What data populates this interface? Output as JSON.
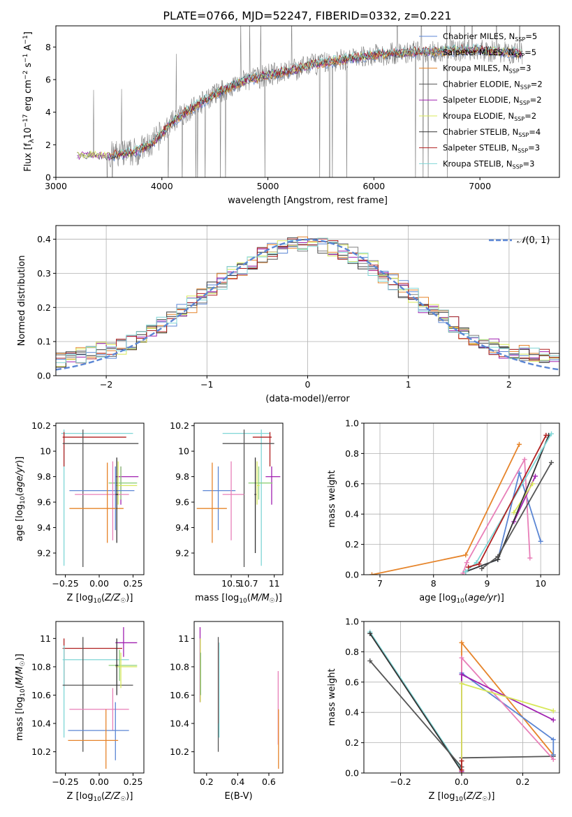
{
  "title": "PLATE=0766, MJD=52247, FIBERID=0332, z=0.221",
  "colors": {
    "grid": "#b0b0b0",
    "obs": "#808080",
    "palette": [
      "#5b86d4",
      "#808080",
      "#e6842a",
      "#555555",
      "#a020b0",
      "#d8e85a",
      "#333333",
      "#b02020",
      "#7fd6d6",
      "#e87fb8",
      "#8fd07a"
    ]
  },
  "chart_data": [
    {
      "id": "spectrum",
      "type": "line",
      "xlabel": "wavelength [Angstrom, rest frame]",
      "ylabel": "Flux [f_λ 10^-17 erg cm^-2 s^-1 A^-1]",
      "xlim": [
        3000,
        7750
      ],
      "ylim": [
        0,
        9.3
      ],
      "xticks": [
        3000,
        4000,
        5000,
        6000,
        7000
      ],
      "yticks": [
        0,
        2,
        4,
        6,
        8
      ],
      "grid": false,
      "legend_position": "right",
      "legend": [
        {
          "label": "Chabrier MILES, N_SSP=5",
          "color": "#5b86d4"
        },
        {
          "label": "Salpeter MILES, N_SSP=5",
          "color": "#808080"
        },
        {
          "label": "Kroupa MILES, N_SSP=3",
          "color": "#e6842a"
        },
        {
          "label": "Chabrier ELODIE, N_SSP=2",
          "color": "#555555"
        },
        {
          "label": "Salpeter ELODIE, N_SSP=2",
          "color": "#a020b0"
        },
        {
          "label": "Kroupa ELODIE, N_SSP=2",
          "color": "#d8e85a"
        },
        {
          "label": "Chabrier STELIB, N_SSP=4",
          "color": "#333333"
        },
        {
          "label": "Salpeter STELIB, N_SSP=3",
          "color": "#b02020"
        },
        {
          "label": "Kroupa STELIB, N_SSP=3",
          "color": "#7fd6d6"
        }
      ],
      "continuum": {
        "x": [
          3200,
          3300,
          3400,
          3500,
          3600,
          3700,
          3800,
          3900,
          4000,
          4100,
          4200,
          4300,
          4400,
          4500,
          4600,
          4700,
          4800,
          4900,
          5000,
          5200,
          5400,
          5600,
          5800,
          6000,
          6200,
          6400,
          6600,
          6800,
          7000,
          7200,
          7400
        ],
        "y": [
          1.3,
          1.4,
          1.35,
          1.3,
          1.4,
          1.5,
          1.7,
          2.0,
          2.7,
          3.4,
          3.9,
          4.3,
          4.7,
          5.1,
          5.4,
          5.7,
          6.0,
          6.1,
          6.3,
          6.5,
          6.9,
          7.1,
          7.3,
          7.5,
          7.6,
          7.7,
          7.7,
          7.8,
          7.8,
          7.7,
          7.6
        ]
      }
    },
    {
      "id": "residuals",
      "type": "line",
      "xlabel": "(data-model)/error",
      "ylabel": "Normed distribution",
      "xlim": [
        -2.5,
        2.5
      ],
      "ylim": [
        0,
        0.44
      ],
      "xticks": [
        -2,
        -1,
        0,
        1,
        2
      ],
      "yticks": [
        0.0,
        0.1,
        0.2,
        0.3,
        0.4
      ],
      "grid": true,
      "legend_position": "top-right",
      "legend": [
        {
          "label": "N(0,1)",
          "color": "#5b86d4"
        }
      ]
    },
    {
      "id": "age_vs_Z",
      "type": "scatter",
      "xlabel": "Z [log10(Z/Z☉)]",
      "ylabel": "age [log10(age/yr)]",
      "xlim": [
        -0.32,
        0.33
      ],
      "ylim": [
        9.03,
        10.22
      ],
      "xticks": [
        -0.25,
        0.0,
        0.25
      ],
      "xticklabels": [
        "−0.25",
        "0.00",
        "0.25"
      ],
      "yticks": [
        9.2,
        9.4,
        9.6,
        9.8,
        10.0,
        10.2
      ],
      "grid": false,
      "points": [
        {
          "x": -0.26,
          "y": 10.14,
          "xlo": -0.28,
          "xhi": 0.25,
          "ylo": 9.1,
          "yhi": 10.17,
          "color": "#7fd6d6"
        },
        {
          "x": -0.26,
          "y": 10.11,
          "xlo": -0.27,
          "xhi": 0.2,
          "ylo": 9.88,
          "yhi": 10.15,
          "color": "#b02020"
        },
        {
          "x": -0.12,
          "y": 10.06,
          "xlo": -0.27,
          "xhi": 0.29,
          "ylo": 9.09,
          "yhi": 10.17,
          "color": "#555555"
        },
        {
          "x": 0.16,
          "y": 9.8,
          "xlo": 0.12,
          "xhi": 0.29,
          "ylo": 9.58,
          "yhi": 9.88,
          "color": "#a020b0"
        },
        {
          "x": 0.16,
          "y": 9.75,
          "xlo": 0.07,
          "xhi": 0.28,
          "ylo": 9.62,
          "yhi": 9.88,
          "color": "#8fd07a"
        },
        {
          "x": 0.14,
          "y": 9.73,
          "xlo": 0.12,
          "xhi": 0.28,
          "ylo": 9.58,
          "yhi": 9.92,
          "color": "#d8e85a"
        },
        {
          "x": 0.12,
          "y": 9.69,
          "xlo": -0.22,
          "xhi": 0.26,
          "ylo": 9.38,
          "yhi": 9.88,
          "color": "#5b86d4"
        },
        {
          "x": 0.1,
          "y": 9.66,
          "xlo": -0.18,
          "xhi": 0.22,
          "ylo": 9.3,
          "yhi": 9.92,
          "color": "#e87fb8"
        },
        {
          "x": 0.06,
          "y": 9.55,
          "xlo": -0.22,
          "xhi": 0.18,
          "ylo": 9.28,
          "yhi": 9.91,
          "color": "#e6842a"
        },
        {
          "x": 0.13,
          "y": 9.66,
          "xlo": 0.12,
          "xhi": 0.14,
          "ylo": 9.28,
          "yhi": 9.95,
          "color": "#333333"
        }
      ]
    },
    {
      "id": "age_vs_mass",
      "type": "scatter",
      "xlabel": "mass [log10(M/M☉)]",
      "ylabel": "",
      "xlim": [
        10.07,
        11.1
      ],
      "ylim": [
        9.03,
        10.22
      ],
      "xticks": [
        10.5,
        10.7,
        11.0
      ],
      "yticks": [
        9.2,
        9.4,
        9.6,
        9.8,
        10.0,
        10.2
      ],
      "grid": false,
      "points": [
        {
          "x": 10.85,
          "y": 10.14,
          "xlo": 10.4,
          "xhi": 10.95,
          "ylo": 9.1,
          "yhi": 10.17,
          "color": "#7fd6d6"
        },
        {
          "x": 10.95,
          "y": 10.11,
          "xlo": 10.75,
          "xhi": 10.97,
          "ylo": 9.88,
          "yhi": 10.15,
          "color": "#b02020"
        },
        {
          "x": 10.65,
          "y": 10.06,
          "xlo": 10.4,
          "xhi": 11.0,
          "ylo": 9.09,
          "yhi": 10.17,
          "color": "#555555"
        },
        {
          "x": 10.97,
          "y": 9.8,
          "xlo": 10.9,
          "xhi": 11.07,
          "ylo": 9.58,
          "yhi": 9.88,
          "color": "#a020b0"
        },
        {
          "x": 10.82,
          "y": 9.75,
          "xlo": 10.7,
          "xhi": 10.98,
          "ylo": 9.62,
          "yhi": 9.88,
          "color": "#8fd07a"
        },
        {
          "x": 10.8,
          "y": 9.73,
          "xlo": 10.8,
          "xhi": 10.83,
          "ylo": 9.58,
          "yhi": 9.92,
          "color": "#d8e85a"
        },
        {
          "x": 10.35,
          "y": 9.69,
          "xlo": 10.17,
          "xhi": 10.55,
          "ylo": 9.38,
          "yhi": 9.88,
          "color": "#5b86d4"
        },
        {
          "x": 10.5,
          "y": 9.66,
          "xlo": 10.4,
          "xhi": 10.65,
          "ylo": 9.3,
          "yhi": 9.92,
          "color": "#e87fb8"
        },
        {
          "x": 10.28,
          "y": 9.55,
          "xlo": 10.1,
          "xhi": 10.45,
          "ylo": 9.28,
          "yhi": 9.91,
          "color": "#e6842a"
        },
        {
          "x": 10.78,
          "y": 9.66,
          "xlo": 10.77,
          "xhi": 10.79,
          "ylo": 9.2,
          "yhi": 9.95,
          "color": "#333333"
        }
      ]
    },
    {
      "id": "weight_vs_age",
      "type": "line",
      "xlabel": "age [log10(age/yr)]",
      "ylabel": "mass weight",
      "xlim": [
        6.7,
        10.35
      ],
      "ylim": [
        0,
        1.0
      ],
      "xticks": [
        7,
        8,
        9,
        10
      ],
      "yticks": [
        0.0,
        0.2,
        0.4,
        0.6,
        0.8,
        1.0
      ],
      "grid": true,
      "series": [
        {
          "color": "#e6842a",
          "x": [
            6.85,
            8.6,
            9.6
          ],
          "y": [
            0.0,
            0.13,
            0.86
          ]
        },
        {
          "color": "#5b86d4",
          "x": [
            8.6,
            9.2,
            9.6,
            10.0
          ],
          "y": [
            0.02,
            0.1,
            0.67,
            0.22
          ]
        },
        {
          "color": "#e87fb8",
          "x": [
            8.55,
            8.62,
            9.7,
            9.8
          ],
          "y": [
            0.01,
            0.08,
            0.76,
            0.11
          ]
        },
        {
          "color": "#a020b0",
          "x": [
            9.5,
            9.9
          ],
          "y": [
            0.35,
            0.65
          ]
        },
        {
          "color": "#d8e85a",
          "x": [
            9.5,
            9.85
          ],
          "y": [
            0.41,
            0.6
          ]
        },
        {
          "color": "#333333",
          "x": [
            8.6,
            9.2,
            10.15
          ],
          "y": [
            0.02,
            0.1,
            0.92
          ]
        },
        {
          "color": "#555555",
          "x": [
            8.9,
            9.2,
            10.2
          ],
          "y": [
            0.04,
            0.12,
            0.74
          ]
        },
        {
          "color": "#7fd6d6",
          "x": [
            8.6,
            8.8,
            10.2
          ],
          "y": [
            0.02,
            0.08,
            0.93
          ]
        },
        {
          "color": "#b02020",
          "x": [
            8.65,
            8.85,
            10.1
          ],
          "y": [
            0.05,
            0.07,
            0.92
          ]
        }
      ]
    },
    {
      "id": "mass_vs_Z",
      "type": "scatter",
      "xlabel": "Z [log10(Z/Z☉)]",
      "ylabel": "mass [log10(M/M☉)]",
      "xlim": [
        -0.32,
        0.33
      ],
      "ylim": [
        10.05,
        11.12
      ],
      "xticks": [
        -0.25,
        0.0,
        0.25
      ],
      "xticklabels": [
        "−0.25",
        "0.00",
        "0.25"
      ],
      "yticks": [
        10.2,
        10.4,
        10.6,
        10.8,
        11.0
      ],
      "grid": false,
      "points": [
        {
          "x": -0.26,
          "y": 10.93,
          "xlo": -0.27,
          "xhi": 0.17,
          "ylo": 10.66,
          "yhi": 11.0,
          "color": "#b02020"
        },
        {
          "x": -0.26,
          "y": 10.85,
          "xlo": -0.27,
          "xhi": 0.22,
          "ylo": 10.3,
          "yhi": 10.95,
          "color": "#7fd6d6"
        },
        {
          "x": -0.12,
          "y": 10.67,
          "xlo": -0.27,
          "xhi": 0.25,
          "ylo": 10.2,
          "yhi": 11.01,
          "color": "#555555"
        },
        {
          "x": 0.18,
          "y": 10.97,
          "xlo": 0.12,
          "xhi": 0.28,
          "ylo": 10.87,
          "yhi": 11.08,
          "color": "#a020b0"
        },
        {
          "x": 0.15,
          "y": 10.81,
          "xlo": 0.07,
          "xhi": 0.28,
          "ylo": 10.7,
          "yhi": 10.92,
          "color": "#8fd07a"
        },
        {
          "x": 0.16,
          "y": 10.8,
          "xlo": 0.12,
          "xhi": 0.28,
          "ylo": 10.65,
          "yhi": 10.9,
          "color": "#d8e85a"
        },
        {
          "x": 0.1,
          "y": 10.5,
          "xlo": -0.22,
          "xhi": 0.22,
          "ylo": 10.35,
          "yhi": 10.65,
          "color": "#e87fb8"
        },
        {
          "x": 0.12,
          "y": 10.35,
          "xlo": -0.23,
          "xhi": 0.22,
          "ylo": 10.14,
          "yhi": 10.55,
          "color": "#5b86d4"
        },
        {
          "x": 0.05,
          "y": 10.28,
          "xlo": -0.23,
          "xhi": 0.14,
          "ylo": 10.08,
          "yhi": 10.5,
          "color": "#e6842a"
        },
        {
          "x": 0.13,
          "y": 10.81,
          "xlo": 0.12,
          "xhi": 0.14,
          "ylo": 10.6,
          "yhi": 11.0,
          "color": "#333333"
        }
      ]
    },
    {
      "id": "mass_vs_ebv",
      "type": "scatter",
      "xlabel": "E(B-V)",
      "ylabel": "",
      "xlim": [
        0.12,
        0.69
      ],
      "ylim": [
        10.05,
        11.12
      ],
      "xticks": [
        0.2,
        0.4,
        0.6
      ],
      "yticks": [
        10.2,
        10.4,
        10.6,
        10.8,
        11.0
      ],
      "grid": false,
      "points": [
        {
          "x": 0.158,
          "y": 10.9,
          "ylo": 10.55,
          "yhi": 11.08,
          "color": "#a020b0"
        },
        {
          "x": 0.16,
          "y": 10.8,
          "ylo": 10.55,
          "yhi": 11.0,
          "color": "#d8e85a"
        },
        {
          "x": 0.162,
          "y": 10.75,
          "ylo": 10.6,
          "yhi": 10.9,
          "color": "#8fd07a"
        },
        {
          "x": 0.275,
          "y": 10.95,
          "ylo": 10.2,
          "yhi": 11.01,
          "color": "#555555"
        },
        {
          "x": 0.278,
          "y": 10.9,
          "ylo": 10.4,
          "yhi": 10.97,
          "color": "#b02020"
        },
        {
          "x": 0.28,
          "y": 10.6,
          "ylo": 10.3,
          "yhi": 10.97,
          "color": "#7fd6d6"
        },
        {
          "x": 0.66,
          "y": 10.5,
          "ylo": 10.25,
          "yhi": 10.77,
          "color": "#e87fb8"
        },
        {
          "x": 0.662,
          "y": 10.3,
          "ylo": 10.08,
          "yhi": 10.5,
          "color": "#e6842a"
        }
      ]
    },
    {
      "id": "weight_vs_Z",
      "type": "line",
      "xlabel": "Z [log10(Z/Z☉)]",
      "ylabel": "mass weight",
      "xlim": [
        -0.32,
        0.32
      ],
      "ylim": [
        0,
        1.0
      ],
      "xticks": [
        -0.2,
        0.0,
        0.2
      ],
      "xticklabels": [
        "−0.2",
        "0.0",
        "0.2"
      ],
      "yticks": [
        0.0,
        0.2,
        0.4,
        0.6,
        0.8,
        1.0
      ],
      "grid": true,
      "series": [
        {
          "color": "#7fd6d6",
          "x": [
            -0.3,
            0.0
          ],
          "y": [
            0.93,
            0.02
          ]
        },
        {
          "color": "#333333",
          "x": [
            -0.3,
            0.0
          ],
          "y": [
            0.92,
            0.01
          ]
        },
        {
          "color": "#555555",
          "x": [
            -0.3,
            0.0,
            0.0,
            0.3
          ],
          "y": [
            0.74,
            0.04,
            0.1,
            0.11
          ]
        },
        {
          "color": "#e6842a",
          "x": [
            0.0,
            0.0,
            0.3
          ],
          "y": [
            0.0,
            0.86,
            0.12
          ]
        },
        {
          "color": "#5b86d4",
          "x": [
            0.0,
            0.0,
            0.3,
            0.3
          ],
          "y": [
            0.02,
            0.66,
            0.22,
            0.12
          ]
        },
        {
          "color": "#e87fb8",
          "x": [
            0.0,
            0.0,
            0.3
          ],
          "y": [
            0.01,
            0.76,
            0.09
          ]
        },
        {
          "color": "#a020b0",
          "x": [
            0.0,
            0.0,
            0.3
          ],
          "y": [
            0.01,
            0.65,
            0.35
          ]
        },
        {
          "color": "#d8e85a",
          "x": [
            0.0,
            0.0,
            0.3
          ],
          "y": [
            0.02,
            0.59,
            0.41
          ]
        },
        {
          "color": "#b02020",
          "x": [
            0.0,
            0.0
          ],
          "y": [
            0.02,
            0.08
          ]
        }
      ]
    }
  ]
}
